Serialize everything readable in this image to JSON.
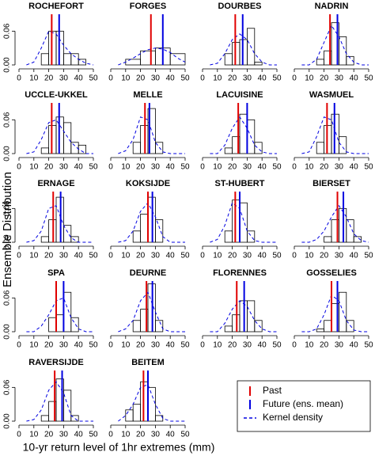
{
  "ylabel": "Ensemble Distribution",
  "xlabel": "10-yr return level of 1hr extremes (mm)",
  "legend": {
    "corner": "bottom-right",
    "items": [
      {
        "name": "Past",
        "color": "#e00000",
        "style": "solid"
      },
      {
        "name": "Future (ens. mean)",
        "color": "#0000e0",
        "style": "solid"
      },
      {
        "name": "Kernel density",
        "color": "#0000e0",
        "style": "dashed"
      }
    ]
  },
  "chart_data": [
    {
      "type": "histogram",
      "title": "ROCHEFORT",
      "bins": [
        15,
        20,
        25,
        30,
        35,
        40,
        45
      ],
      "values": [
        0.02,
        0.06,
        0.06,
        0.02,
        0.02,
        0.01
      ],
      "past": 22,
      "future": 27,
      "kde": {
        "x": [
          5,
          10,
          15,
          20,
          25,
          30,
          35,
          40,
          45,
          50
        ],
        "values": [
          0,
          0.005,
          0.03,
          0.06,
          0.055,
          0.035,
          0.02,
          0.01,
          0.003,
          0
        ]
      },
      "xlim": [
        0,
        50
      ],
      "xticks": [
        0,
        10,
        20,
        30,
        40,
        50
      ],
      "ylim": [
        0,
        0.09
      ],
      "yticks": [
        {
          "value": 0,
          "label": "0.00"
        },
        {
          "value": 0.06,
          "label": "0.06"
        }
      ]
    },
    {
      "type": "histogram",
      "title": "FORGES",
      "bins": [
        10,
        20,
        30,
        40,
        50
      ],
      "values": [
        0.01,
        0.025,
        0.03,
        0.02
      ],
      "past": 27,
      "future": 35,
      "kde": {
        "x": [
          5,
          10,
          15,
          20,
          25,
          30,
          35,
          40,
          45,
          50
        ],
        "values": [
          0,
          0.005,
          0.012,
          0.02,
          0.027,
          0.03,
          0.028,
          0.022,
          0.012,
          0.005
        ]
      },
      "xlim": [
        0,
        50
      ],
      "xticks": [
        0,
        10,
        20,
        30,
        40,
        50
      ],
      "ylim": [
        0,
        0.09
      ]
    },
    {
      "type": "histogram",
      "title": "DOURBES",
      "bins": [
        15,
        20,
        25,
        30,
        35,
        40
      ],
      "values": [
        0.02,
        0.04,
        0.045,
        0.065,
        0.005
      ],
      "past": 22,
      "future": 27,
      "kde": {
        "x": [
          5,
          10,
          15,
          20,
          25,
          30,
          35,
          40,
          45,
          50
        ],
        "values": [
          0,
          0.003,
          0.02,
          0.045,
          0.055,
          0.045,
          0.02,
          0.005,
          0,
          0
        ]
      },
      "xlim": [
        0,
        50
      ],
      "xticks": [
        0,
        10,
        20,
        30,
        40,
        50
      ],
      "ylim": [
        0,
        0.09
      ]
    },
    {
      "type": "histogram",
      "title": "NADRIN",
      "bins": [
        15,
        20,
        25,
        30,
        35,
        40
      ],
      "values": [
        0.01,
        0.025,
        0.075,
        0.05,
        0.015
      ],
      "past": 24,
      "future": 29,
      "kde": {
        "x": [
          5,
          10,
          15,
          20,
          25,
          30,
          35,
          40,
          45,
          50
        ],
        "values": [
          0,
          0,
          0.01,
          0.04,
          0.07,
          0.05,
          0.02,
          0.005,
          0,
          0
        ]
      },
      "xlim": [
        0,
        50
      ],
      "xticks": [
        0,
        10,
        20,
        30,
        40,
        50
      ],
      "ylim": [
        0,
        0.09
      ]
    },
    {
      "type": "histogram",
      "title": "UCCLE-UKKEL",
      "bins": [
        15,
        20,
        25,
        30,
        35,
        40,
        45
      ],
      "values": [
        0.01,
        0.05,
        0.065,
        0.055,
        0.02,
        0.015
      ],
      "past": 22,
      "future": 27,
      "kde": {
        "x": [
          5,
          10,
          15,
          20,
          25,
          30,
          35,
          40,
          45,
          50
        ],
        "values": [
          0,
          0.003,
          0.025,
          0.055,
          0.06,
          0.04,
          0.02,
          0.008,
          0,
          0
        ]
      },
      "xlim": [
        0,
        50
      ],
      "xticks": [
        0,
        10,
        20,
        30,
        40,
        50
      ],
      "ylim": [
        0,
        0.09
      ],
      "yticks": [
        {
          "value": 0,
          "label": "0.00"
        },
        {
          "value": 0.06,
          "label": "0.06"
        }
      ]
    },
    {
      "type": "histogram",
      "title": "MELLE",
      "bins": [
        15,
        20,
        25,
        30,
        35
      ],
      "values": [
        0.02,
        0.05,
        0.08,
        0.02
      ],
      "past": 23,
      "future": 26,
      "kde": {
        "x": [
          5,
          10,
          15,
          20,
          25,
          30,
          35,
          40,
          45,
          50
        ],
        "values": [
          0,
          0.005,
          0.025,
          0.065,
          0.06,
          0.02,
          0.003,
          0,
          0,
          0
        ]
      },
      "xlim": [
        0,
        50
      ],
      "xticks": [
        0,
        10,
        20,
        30,
        40,
        50
      ],
      "ylim": [
        0,
        0.09
      ]
    },
    {
      "type": "histogram",
      "title": "LACUISINE",
      "bins": [
        15,
        20,
        25,
        30,
        35,
        40
      ],
      "values": [
        0.01,
        0.03,
        0.07,
        0.06,
        0.02
      ],
      "past": 24,
      "future": 30,
      "kde": {
        "x": [
          5,
          10,
          15,
          20,
          25,
          30,
          35,
          40,
          45,
          50
        ],
        "values": [
          0,
          0,
          0.015,
          0.045,
          0.065,
          0.045,
          0.015,
          0.003,
          0,
          0
        ]
      },
      "xlim": [
        0,
        50
      ],
      "xticks": [
        0,
        10,
        20,
        30,
        40,
        50
      ],
      "ylim": [
        0,
        0.09
      ]
    },
    {
      "type": "histogram",
      "title": "WASMUEL",
      "bins": [
        15,
        20,
        25,
        30,
        35
      ],
      "values": [
        0.02,
        0.05,
        0.07,
        0.03
      ],
      "past": 22,
      "future": 27,
      "kde": {
        "x": [
          5,
          10,
          15,
          20,
          25,
          30,
          35,
          40,
          45,
          50
        ],
        "values": [
          0,
          0.003,
          0.03,
          0.065,
          0.06,
          0.02,
          0.003,
          0,
          0,
          0
        ]
      },
      "xlim": [
        0,
        50
      ],
      "xticks": [
        0,
        10,
        20,
        30,
        40,
        50
      ],
      "ylim": [
        0,
        0.09
      ]
    },
    {
      "type": "histogram",
      "title": "ERNAGE",
      "bins": [
        15,
        20,
        25,
        30,
        35,
        40
      ],
      "values": [
        0.01,
        0.04,
        0.08,
        0.03,
        0.01
      ],
      "past": 23,
      "future": 28,
      "kde": {
        "x": [
          5,
          10,
          15,
          20,
          25,
          30,
          35,
          40,
          45,
          50
        ],
        "values": [
          0,
          0.003,
          0.02,
          0.06,
          0.065,
          0.03,
          0.008,
          0,
          0,
          0
        ]
      },
      "xlim": [
        0,
        50
      ],
      "xticks": [
        0,
        10,
        20,
        30,
        40,
        50
      ],
      "ylim": [
        0,
        0.09
      ],
      "yticks": [
        {
          "value": 0,
          "label": "0.00"
        },
        {
          "value": 0.06,
          "label": "0.06"
        }
      ]
    },
    {
      "type": "histogram",
      "title": "KOKSIJDE",
      "bins": [
        15,
        20,
        25,
        30,
        35
      ],
      "values": [
        0.02,
        0.05,
        0.08,
        0.04
      ],
      "past": 25,
      "future": 28,
      "kde": {
        "x": [
          5,
          10,
          15,
          20,
          25,
          30,
          35,
          40,
          45,
          50
        ],
        "values": [
          0,
          0.003,
          0.02,
          0.055,
          0.07,
          0.045,
          0.01,
          0,
          0,
          0
        ]
      },
      "xlim": [
        0,
        50
      ],
      "xticks": [
        0,
        10,
        20,
        30,
        40,
        50
      ],
      "ylim": [
        0,
        0.09
      ]
    },
    {
      "type": "histogram",
      "title": "ST-HUBERT",
      "bins": [
        15,
        20,
        25,
        30,
        35
      ],
      "values": [
        0.02,
        0.075,
        0.07,
        0.02
      ],
      "past": 22,
      "future": 25,
      "kde": {
        "x": [
          5,
          10,
          15,
          20,
          25,
          30,
          35,
          40,
          45,
          50
        ],
        "values": [
          0,
          0.005,
          0.03,
          0.07,
          0.06,
          0.02,
          0.003,
          0,
          0,
          0
        ]
      },
      "xlim": [
        0,
        50
      ],
      "xticks": [
        0,
        10,
        20,
        30,
        40,
        50
      ],
      "ylim": [
        0,
        0.09
      ]
    },
    {
      "type": "histogram",
      "title": "BIERSET",
      "bins": [
        20,
        25,
        30,
        35,
        40,
        45
      ],
      "values": [
        0.01,
        0.04,
        0.06,
        0.04,
        0.01
      ],
      "past": 29,
      "future": 33,
      "kde": {
        "x": [
          5,
          10,
          15,
          20,
          25,
          30,
          35,
          40,
          45,
          50
        ],
        "values": [
          0,
          0,
          0.005,
          0.02,
          0.045,
          0.065,
          0.045,
          0.015,
          0.003,
          0
        ]
      },
      "xlim": [
        0,
        50
      ],
      "xticks": [
        0,
        10,
        20,
        30,
        40,
        50
      ],
      "ylim": [
        0,
        0.09
      ]
    },
    {
      "type": "histogram",
      "title": "SPA",
      "bins": [
        20,
        25,
        30,
        35,
        40
      ],
      "values": [
        0.025,
        0.03,
        0.07,
        0.025
      ],
      "past": 25,
      "future": 30,
      "kde": {
        "x": [
          5,
          10,
          15,
          20,
          25,
          30,
          35,
          40,
          45,
          50
        ],
        "values": [
          0,
          0,
          0.01,
          0.03,
          0.055,
          0.06,
          0.025,
          0.005,
          0,
          0
        ]
      },
      "xlim": [
        0,
        50
      ],
      "xticks": [
        0,
        10,
        20,
        30,
        40,
        50
      ],
      "ylim": [
        0,
        0.09
      ],
      "yticks": [
        {
          "value": 0,
          "label": "0.00"
        },
        {
          "value": 0.06,
          "label": "0.06"
        }
      ]
    },
    {
      "type": "histogram",
      "title": "DEURNE",
      "bins": [
        15,
        20,
        25,
        30,
        35
      ],
      "values": [
        0.02,
        0.04,
        0.085,
        0.02
      ],
      "past": 24,
      "future": 28,
      "kde": {
        "x": [
          5,
          10,
          15,
          20,
          25,
          30,
          35,
          40,
          45,
          50
        ],
        "values": [
          0,
          0.005,
          0.02,
          0.055,
          0.07,
          0.035,
          0.005,
          0,
          0,
          0
        ]
      },
      "xlim": [
        0,
        50
      ],
      "xticks": [
        0,
        10,
        20,
        30,
        40,
        50
      ],
      "ylim": [
        0,
        0.09
      ]
    },
    {
      "type": "histogram",
      "title": "FLORENNES",
      "bins": [
        15,
        20,
        25,
        30,
        35,
        40
      ],
      "values": [
        0.01,
        0.03,
        0.055,
        0.055,
        0.02
      ],
      "past": 23,
      "future": 28,
      "kde": {
        "x": [
          5,
          10,
          15,
          20,
          25,
          30,
          35,
          40,
          45,
          50
        ],
        "values": [
          0,
          0,
          0.015,
          0.04,
          0.055,
          0.045,
          0.02,
          0.005,
          0,
          0
        ]
      },
      "xlim": [
        0,
        50
      ],
      "xticks": [
        0,
        10,
        20,
        30,
        40,
        50
      ],
      "ylim": [
        0,
        0.09
      ]
    },
    {
      "type": "histogram",
      "title": "GOSSELIES",
      "bins": [
        15,
        20,
        25,
        30,
        35,
        40
      ],
      "values": [
        0.005,
        0.02,
        0.05,
        0.07,
        0.02
      ],
      "past": 25,
      "future": 29,
      "kde": {
        "x": [
          5,
          10,
          15,
          20,
          25,
          30,
          35,
          40,
          45,
          50
        ],
        "values": [
          0,
          0,
          0.005,
          0.03,
          0.065,
          0.055,
          0.02,
          0.003,
          0,
          0
        ]
      },
      "xlim": [
        0,
        50
      ],
      "xticks": [
        0,
        10,
        20,
        30,
        40,
        50
      ],
      "ylim": [
        0,
        0.09
      ]
    },
    {
      "type": "histogram",
      "title": "RAVERSIJDE",
      "bins": [
        15,
        20,
        25,
        30,
        35,
        40
      ],
      "values": [
        0.01,
        0.035,
        0.075,
        0.055,
        0.01
      ],
      "past": 24,
      "future": 29,
      "kde": {
        "x": [
          5,
          10,
          15,
          20,
          25,
          30,
          35,
          40,
          45,
          50
        ],
        "values": [
          0,
          0.003,
          0.02,
          0.055,
          0.07,
          0.05,
          0.01,
          0,
          0,
          0
        ]
      },
      "xlim": [
        0,
        50
      ],
      "xticks": [
        0,
        10,
        20,
        30,
        40,
        50
      ],
      "ylim": [
        0,
        0.09
      ],
      "yticks": [
        {
          "value": 0,
          "label": "0.00"
        },
        {
          "value": 0.06,
          "label": "0.06"
        }
      ]
    },
    {
      "type": "histogram",
      "title": "BEITEM",
      "bins": [
        10,
        15,
        20,
        25,
        30,
        35
      ],
      "values": [
        0.02,
        0.03,
        0.07,
        0.06,
        0.01
      ],
      "past": 22,
      "future": 25,
      "kde": {
        "x": [
          5,
          10,
          15,
          20,
          25,
          30,
          35,
          40,
          45,
          50
        ],
        "values": [
          0,
          0.01,
          0.03,
          0.06,
          0.065,
          0.03,
          0.005,
          0,
          0,
          0
        ]
      },
      "xlim": [
        0,
        50
      ],
      "xticks": [
        0,
        10,
        20,
        30,
        40,
        50
      ],
      "ylim": [
        0,
        0.09
      ]
    }
  ]
}
